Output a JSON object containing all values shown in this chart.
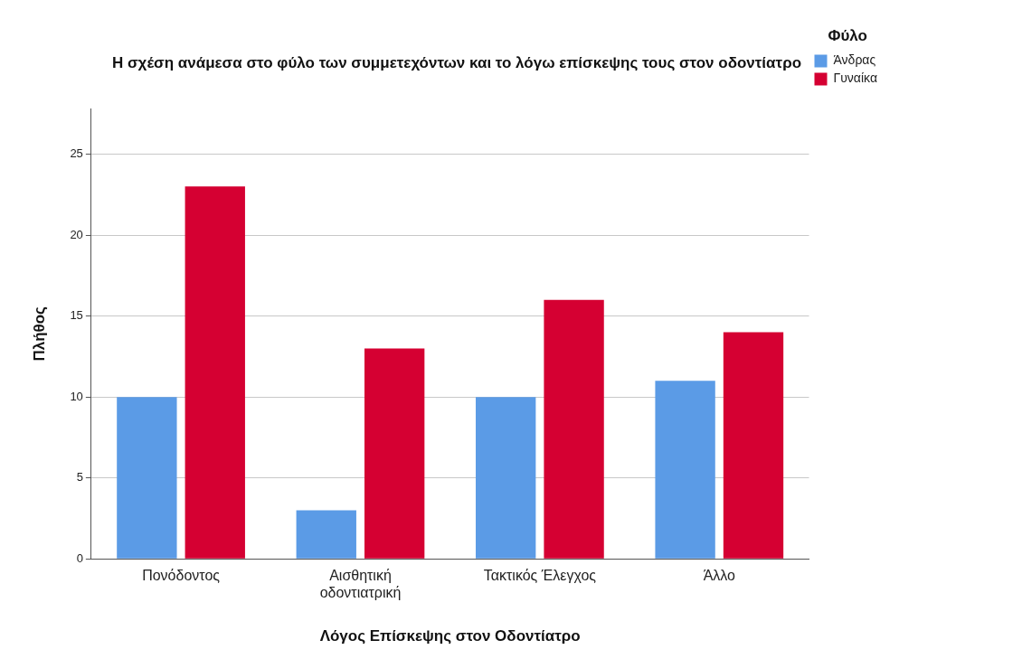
{
  "chart_data": {
    "type": "bar",
    "title": "Η σχέση ανάμεσα στο φύλο των συμμετεχόντων και το λόγω επίσκεψης τους στον οδοντίατρο",
    "xlabel": "Λόγος Επίσκεψης στον Οδοντίατρο",
    "ylabel": "Πλήθος",
    "legend_title": "Φύλο",
    "categories": [
      "Πονόδοντος",
      "Αισθητική οδοντιατρική",
      "Τακτικός Έλεγχος",
      "Άλλο"
    ],
    "series": [
      {
        "name": "Άνδρας",
        "color": "#5b9be6",
        "values": [
          10,
          3,
          10,
          11
        ]
      },
      {
        "name": "Γυναίκα",
        "color": "#d50032",
        "values": [
          23,
          13,
          16,
          14
        ]
      }
    ],
    "ylim": [
      0,
      27.8
    ],
    "yticks": [
      0,
      5,
      10,
      15,
      20,
      25
    ],
    "grid": "y",
    "legend": "top right"
  }
}
